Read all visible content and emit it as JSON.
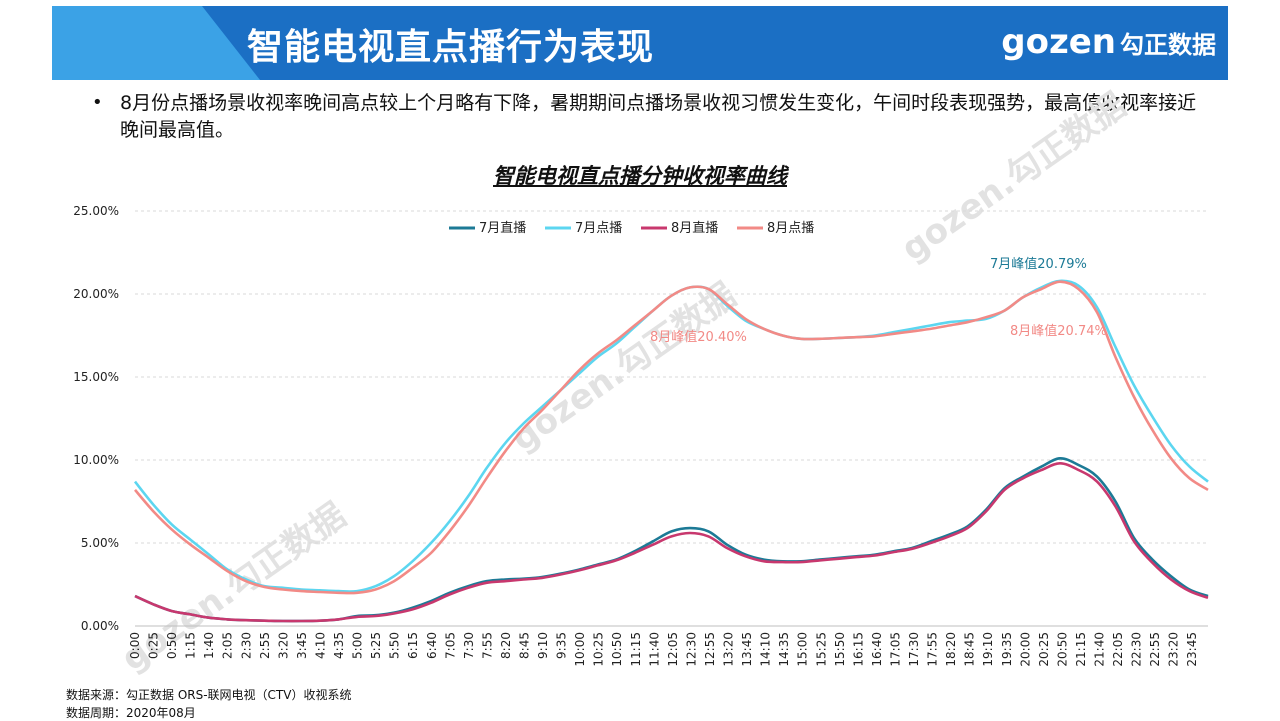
{
  "header": {
    "title": "智能电视直点播行为表现",
    "logo_text": "gozen",
    "logo_cn": "勾正数据"
  },
  "bullet": "8月份点播场景收视率晚间高点较上个月略有下降，暑期期间点播场景收视习惯发生变化，午间时段表现强势，最高值收视率接近晚间最高值。",
  "watermark": "gozen.勾正数据",
  "chart_data": {
    "type": "line",
    "title": "智能电视直点播分钟收视率曲线",
    "xlabel": "",
    "ylabel": "",
    "ylim": [
      0,
      25
    ],
    "yticks": [
      "0.00%",
      "5.00%",
      "10.00%",
      "15.00%",
      "20.00%",
      "25.00%"
    ],
    "x_ticks": [
      "0:00",
      "0:25",
      "0:50",
      "1:15",
      "1:40",
      "2:05",
      "2:30",
      "2:55",
      "3:20",
      "3:45",
      "4:10",
      "4:35",
      "5:00",
      "5:25",
      "5:50",
      "6:15",
      "6:40",
      "7:05",
      "7:30",
      "7:55",
      "8:20",
      "8:45",
      "9:10",
      "9:35",
      "10:00",
      "10:25",
      "10:50",
      "11:15",
      "11:40",
      "12:05",
      "12:30",
      "12:55",
      "13:20",
      "13:45",
      "14:10",
      "14:35",
      "15:00",
      "15:25",
      "15:50",
      "16:15",
      "16:40",
      "17:05",
      "17:30",
      "17:55",
      "18:20",
      "18:45",
      "19:10",
      "19:35",
      "20:00",
      "20:25",
      "20:50",
      "21:15",
      "21:40",
      "22:05",
      "22:30",
      "22:55",
      "23:20",
      "23:45"
    ],
    "legend": [
      "7月直播",
      "7月点播",
      "8月直播",
      "8月点播"
    ],
    "series": [
      {
        "name": "7月直播",
        "color": "#1c7a96",
        "values": [
          1.8,
          1.3,
          0.9,
          0.7,
          0.5,
          0.4,
          0.35,
          0.32,
          0.3,
          0.3,
          0.32,
          0.4,
          0.6,
          0.65,
          0.8,
          1.1,
          1.5,
          2.0,
          2.4,
          2.7,
          2.8,
          2.85,
          2.95,
          3.15,
          3.4,
          3.7,
          4.0,
          4.5,
          5.1,
          5.7,
          5.9,
          5.7,
          4.9,
          4.3,
          4.0,
          3.9,
          3.9,
          4.0,
          4.1,
          4.2,
          4.3,
          4.5,
          4.7,
          5.1,
          5.5,
          6.0,
          7.0,
          8.3,
          9.0,
          9.6,
          10.1,
          9.7,
          9.0,
          7.5,
          5.3,
          4.0,
          3.0,
          2.2,
          1.8
        ]
      },
      {
        "name": "7月点播",
        "color": "#5cd6f0",
        "values": [
          8.7,
          7.3,
          6.1,
          5.2,
          4.3,
          3.4,
          2.8,
          2.4,
          2.3,
          2.2,
          2.15,
          2.1,
          2.1,
          2.4,
          3.0,
          3.9,
          5.0,
          6.3,
          7.8,
          9.5,
          11.0,
          12.2,
          13.2,
          14.2,
          15.2,
          16.2,
          17.0,
          18.0,
          19.0,
          19.9,
          20.4,
          20.3,
          19.3,
          18.4,
          17.9,
          17.5,
          17.3,
          17.3,
          17.35,
          17.4,
          17.5,
          17.7,
          17.9,
          18.1,
          18.3,
          18.4,
          18.5,
          19.0,
          19.8,
          20.4,
          20.79,
          20.5,
          19.2,
          16.8,
          14.5,
          12.6,
          10.9,
          9.6,
          8.7
        ]
      },
      {
        "name": "8月直播",
        "color": "#c8386e",
        "values": [
          1.8,
          1.3,
          0.9,
          0.7,
          0.5,
          0.4,
          0.35,
          0.32,
          0.3,
          0.3,
          0.32,
          0.4,
          0.55,
          0.6,
          0.75,
          1.0,
          1.4,
          1.9,
          2.3,
          2.6,
          2.7,
          2.8,
          2.9,
          3.1,
          3.35,
          3.65,
          3.95,
          4.4,
          4.9,
          5.4,
          5.6,
          5.4,
          4.7,
          4.2,
          3.9,
          3.85,
          3.85,
          3.95,
          4.05,
          4.15,
          4.25,
          4.45,
          4.65,
          5.0,
          5.4,
          5.9,
          6.9,
          8.2,
          8.9,
          9.4,
          9.8,
          9.4,
          8.7,
          7.2,
          5.1,
          3.8,
          2.8,
          2.1,
          1.7
        ]
      },
      {
        "name": "8月点播",
        "color": "#f28a86",
        "values": [
          8.2,
          6.9,
          5.8,
          4.9,
          4.1,
          3.3,
          2.7,
          2.35,
          2.2,
          2.1,
          2.05,
          2.0,
          2.0,
          2.2,
          2.7,
          3.5,
          4.4,
          5.7,
          7.2,
          8.9,
          10.5,
          11.9,
          13.0,
          14.2,
          15.4,
          16.4,
          17.2,
          18.1,
          19.0,
          19.9,
          20.4,
          20.3,
          19.4,
          18.5,
          17.9,
          17.5,
          17.3,
          17.3,
          17.35,
          17.4,
          17.45,
          17.6,
          17.75,
          17.9,
          18.1,
          18.3,
          18.6,
          19.0,
          19.8,
          20.3,
          20.74,
          20.3,
          18.9,
          16.2,
          13.8,
          11.8,
          10.1,
          8.9,
          8.2
        ]
      }
    ],
    "annotations": [
      {
        "text": "7月峰值20.79%",
        "color": "#1c7a96"
      },
      {
        "text": "8月峰值20.40%",
        "color": "#f28a86"
      },
      {
        "text": "8月峰值20.74%",
        "color": "#f28a86"
      }
    ]
  },
  "footer": {
    "source": "数据来源：勾正数据 ORS-联网电视（CTV）收视系统",
    "period": "数据周期：2020年08月"
  }
}
